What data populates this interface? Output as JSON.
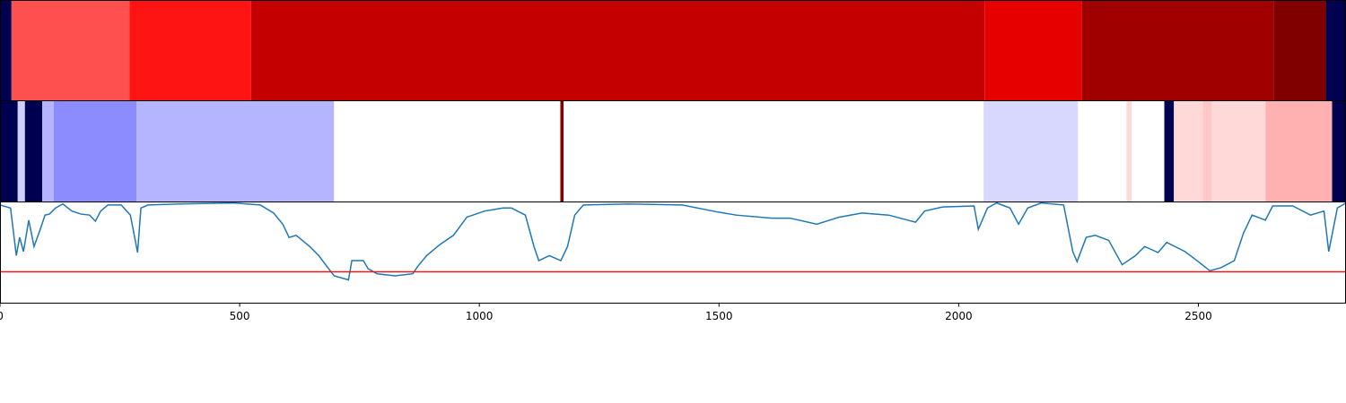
{
  "chart_data": [
    {
      "type": "strip",
      "xlim": [
        0,
        2808
      ],
      "segments": [
        {
          "start": 0,
          "end": 24,
          "color": "#000050"
        },
        {
          "start": 24,
          "end": 270,
          "color": "#ff5050"
        },
        {
          "start": 270,
          "end": 524,
          "color": "#ff1414"
        },
        {
          "start": 524,
          "end": 2054,
          "color": "#c40000"
        },
        {
          "start": 2054,
          "end": 2257,
          "color": "#e60000"
        },
        {
          "start": 2257,
          "end": 2657,
          "color": "#a00000"
        },
        {
          "start": 2657,
          "end": 2766,
          "color": "#800000"
        },
        {
          "start": 2766,
          "end": 2808,
          "color": "#000050"
        }
      ]
    },
    {
      "type": "strip",
      "xlim": [
        0,
        2808
      ],
      "segments": [
        {
          "start": 0,
          "end": 37,
          "color": "#000050"
        },
        {
          "start": 37,
          "end": 52,
          "color": "#d0d0ff"
        },
        {
          "start": 52,
          "end": 88,
          "color": "#000050"
        },
        {
          "start": 88,
          "end": 112,
          "color": "#b4b4ff"
        },
        {
          "start": 112,
          "end": 285,
          "color": "#8c8cff"
        },
        {
          "start": 285,
          "end": 697,
          "color": "#b4b4ff"
        },
        {
          "start": 697,
          "end": 1169,
          "color": "#ffffff"
        },
        {
          "start": 1169,
          "end": 1176,
          "color": "#800000"
        },
        {
          "start": 1176,
          "end": 2052,
          "color": "#ffffff"
        },
        {
          "start": 2052,
          "end": 2249,
          "color": "#d8d8ff"
        },
        {
          "start": 2249,
          "end": 2350,
          "color": "#ffffff"
        },
        {
          "start": 2350,
          "end": 2361,
          "color": "#ffd8d8"
        },
        {
          "start": 2361,
          "end": 2429,
          "color": "#ffffff"
        },
        {
          "start": 2429,
          "end": 2449,
          "color": "#000050"
        },
        {
          "start": 2449,
          "end": 2509,
          "color": "#ffd8d8"
        },
        {
          "start": 2509,
          "end": 2528,
          "color": "#ffc8c8"
        },
        {
          "start": 2528,
          "end": 2640,
          "color": "#ffd8d8"
        },
        {
          "start": 2640,
          "end": 2779,
          "color": "#ffb0b0"
        },
        {
          "start": 2779,
          "end": 2808,
          "color": "#000050"
        }
      ]
    },
    {
      "type": "line",
      "xlim": [
        0,
        2808
      ],
      "xticks": [
        0,
        500,
        1000,
        1500,
        2000,
        2500
      ],
      "ylim": [
        0,
        1
      ],
      "color": "#1f77b4",
      "hline": 0.31,
      "hline_color": "#e41a1c",
      "x": [
        0,
        22,
        34,
        41,
        49,
        60,
        71,
        84,
        94,
        103,
        116,
        131,
        150,
        169,
        187,
        199,
        210,
        225,
        253,
        272,
        281,
        287,
        294,
        309,
        375,
        487,
        543,
        571,
        590,
        603,
        618,
        646,
        665,
        684,
        697,
        712,
        727,
        734,
        758,
        768,
        787,
        824,
        861,
        871,
        890,
        918,
        946,
        974,
        1011,
        1049,
        1067,
        1096,
        1114,
        1124,
        1146,
        1170,
        1184,
        1199,
        1217,
        1311,
        1423,
        1498,
        1536,
        1610,
        1648,
        1704,
        1751,
        1798,
        1854,
        1910,
        1929,
        1966,
        2032,
        2041,
        2060,
        2079,
        2107,
        2125,
        2144,
        2172,
        2219,
        2238,
        2247,
        2266,
        2285,
        2313,
        2341,
        2369,
        2388,
        2416,
        2434,
        2472,
        2500,
        2524,
        2547,
        2575,
        2594,
        2612,
        2640,
        2655,
        2697,
        2734,
        2762,
        2772,
        2790,
        2808
      ],
      "values": [
        0.97,
        0.94,
        0.47,
        0.65,
        0.51,
        0.82,
        0.56,
        0.73,
        0.87,
        0.88,
        0.94,
        0.98,
        0.91,
        0.88,
        0.87,
        0.81,
        0.91,
        0.97,
        0.97,
        0.87,
        0.65,
        0.5,
        0.94,
        0.97,
        0.98,
        0.99,
        0.97,
        0.89,
        0.78,
        0.65,
        0.67,
        0.56,
        0.47,
        0.35,
        0.27,
        0.25,
        0.23,
        0.42,
        0.42,
        0.34,
        0.29,
        0.27,
        0.29,
        0.36,
        0.47,
        0.58,
        0.67,
        0.85,
        0.91,
        0.94,
        0.94,
        0.87,
        0.56,
        0.42,
        0.47,
        0.42,
        0.56,
        0.87,
        0.97,
        0.98,
        0.97,
        0.9,
        0.87,
        0.84,
        0.84,
        0.78,
        0.85,
        0.89,
        0.87,
        0.8,
        0.91,
        0.95,
        0.96,
        0.73,
        0.94,
        0.99,
        0.94,
        0.78,
        0.94,
        0.99,
        0.97,
        0.51,
        0.41,
        0.65,
        0.67,
        0.62,
        0.38,
        0.47,
        0.56,
        0.5,
        0.6,
        0.51,
        0.41,
        0.32,
        0.35,
        0.42,
        0.69,
        0.87,
        0.82,
        0.96,
        0.96,
        0.87,
        0.91,
        0.51,
        0.94,
        0.99
      ]
    }
  ]
}
